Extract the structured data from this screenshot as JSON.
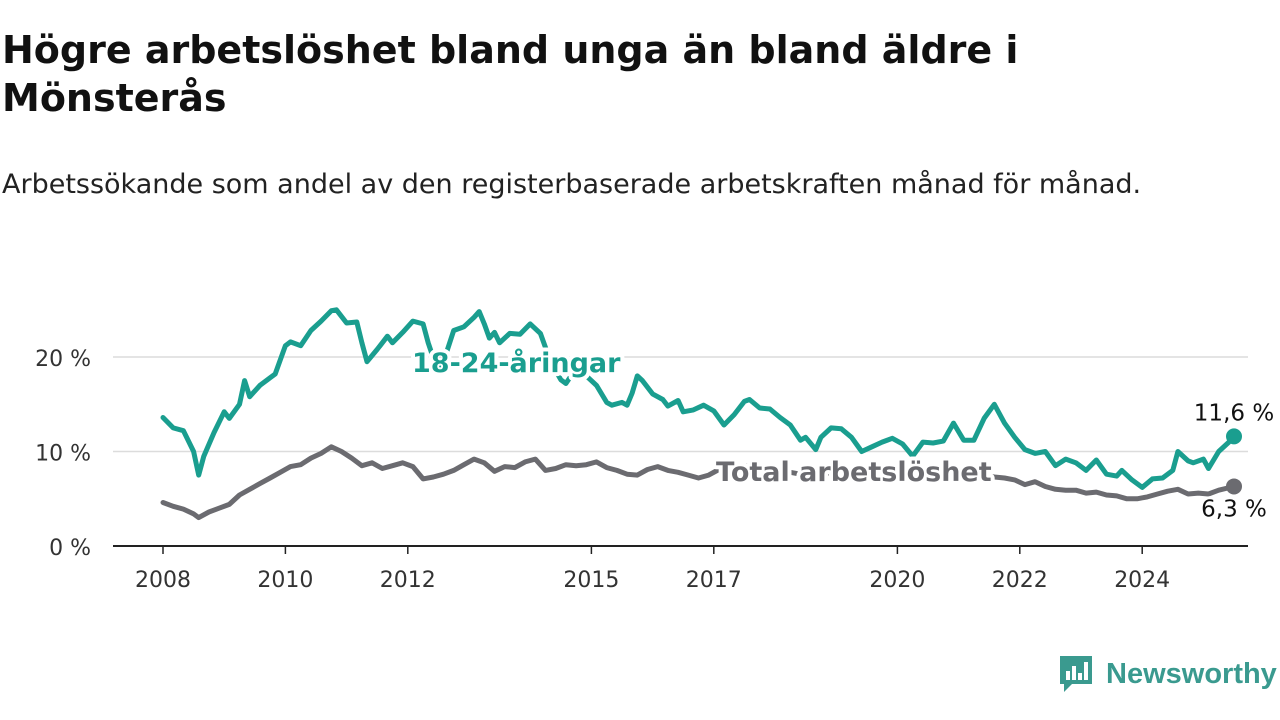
{
  "title": "Högre arbetslöshet bland unga än bland äldre i Mönsterås",
  "subtitle": "Arbetssökande som andel av den registerbaserade arbetskraften månad för månad.",
  "brand": {
    "name": "Newsworthy",
    "icon": "newsworthy-logo-icon",
    "color": "#3a9a8f"
  },
  "chart_data": {
    "type": "line",
    "xlabel": "",
    "ylabel": "",
    "x_ticks": [
      "2008",
      "2010",
      "2012",
      "2015",
      "2017",
      "2020",
      "2022",
      "2024"
    ],
    "y_ticks": [
      "0 %",
      "10 %",
      "20 %"
    ],
    "ylim": [
      0,
      25
    ],
    "xlim": [
      "2008-01",
      "2025-12"
    ],
    "grid": true,
    "legend": "inline labels",
    "series": [
      {
        "name": "18-24-åringar",
        "color": "#1a9e8f",
        "end_label": "11,6 %",
        "points": [
          [
            "2008-01",
            13.6
          ],
          [
            "2008-03",
            12.5
          ],
          [
            "2008-05",
            12.2
          ],
          [
            "2008-07",
            10.0
          ],
          [
            "2008-08",
            7.5
          ],
          [
            "2008-09",
            9.5
          ],
          [
            "2008-11",
            12.0
          ],
          [
            "2009-01",
            14.2
          ],
          [
            "2009-02",
            13.5
          ],
          [
            "2009-04",
            15.0
          ],
          [
            "2009-05",
            17.5
          ],
          [
            "2009-06",
            15.8
          ],
          [
            "2009-08",
            17.0
          ],
          [
            "2009-10",
            17.8
          ],
          [
            "2009-11",
            18.2
          ],
          [
            "2010-01",
            21.2
          ],
          [
            "2010-02",
            21.6
          ],
          [
            "2010-04",
            21.2
          ],
          [
            "2010-06",
            22.8
          ],
          [
            "2010-08",
            23.8
          ],
          [
            "2010-10",
            24.9
          ],
          [
            "2010-11",
            25.0
          ],
          [
            "2011-01",
            23.6
          ],
          [
            "2011-03",
            23.7
          ],
          [
            "2011-04",
            21.5
          ],
          [
            "2011-05",
            19.5
          ],
          [
            "2011-07",
            20.8
          ],
          [
            "2011-09",
            22.2
          ],
          [
            "2011-10",
            21.5
          ],
          [
            "2011-12",
            22.6
          ],
          [
            "2012-02",
            23.8
          ],
          [
            "2012-04",
            23.5
          ],
          [
            "2012-05",
            21.5
          ],
          [
            "2012-07",
            18.3
          ],
          [
            "2012-08",
            19.5
          ],
          [
            "2012-10",
            22.8
          ],
          [
            "2012-12",
            23.2
          ],
          [
            "2013-02",
            24.2
          ],
          [
            "2013-03",
            24.8
          ],
          [
            "2013-04",
            23.5
          ],
          [
            "2013-05",
            22.0
          ],
          [
            "2013-06",
            22.6
          ],
          [
            "2013-07",
            21.5
          ],
          [
            "2013-09",
            22.5
          ],
          [
            "2013-11",
            22.4
          ],
          [
            "2014-01",
            23.5
          ],
          [
            "2014-03",
            22.5
          ],
          [
            "2014-05",
            19.5
          ],
          [
            "2014-07",
            17.6
          ],
          [
            "2014-08",
            17.2
          ],
          [
            "2014-10",
            18.8
          ],
          [
            "2014-12",
            18.0
          ],
          [
            "2015-02",
            17.0
          ],
          [
            "2015-04",
            15.2
          ],
          [
            "2015-05",
            14.9
          ],
          [
            "2015-07",
            15.2
          ],
          [
            "2015-08",
            14.9
          ],
          [
            "2015-09",
            16.2
          ],
          [
            "2015-10",
            18.0
          ],
          [
            "2015-11",
            17.5
          ],
          [
            "2016-01",
            16.1
          ],
          [
            "2016-03",
            15.5
          ],
          [
            "2016-04",
            14.8
          ],
          [
            "2016-06",
            15.4
          ],
          [
            "2016-07",
            14.2
          ],
          [
            "2016-09",
            14.4
          ],
          [
            "2016-11",
            14.9
          ],
          [
            "2017-01",
            14.3
          ],
          [
            "2017-03",
            12.8
          ],
          [
            "2017-05",
            13.9
          ],
          [
            "2017-07",
            15.3
          ],
          [
            "2017-08",
            15.5
          ],
          [
            "2017-10",
            14.6
          ],
          [
            "2017-12",
            14.5
          ],
          [
            "2018-02",
            13.6
          ],
          [
            "2018-04",
            12.8
          ],
          [
            "2018-06",
            11.2
          ],
          [
            "2018-07",
            11.5
          ],
          [
            "2018-09",
            10.2
          ],
          [
            "2018-10",
            11.5
          ],
          [
            "2018-12",
            12.5
          ],
          [
            "2019-02",
            12.4
          ],
          [
            "2019-04",
            11.5
          ],
          [
            "2019-06",
            10.0
          ],
          [
            "2019-08",
            10.5
          ],
          [
            "2019-10",
            11.0
          ],
          [
            "2019-12",
            11.4
          ],
          [
            "2020-02",
            10.8
          ],
          [
            "2020-04",
            9.5
          ],
          [
            "2020-06",
            11.0
          ],
          [
            "2020-08",
            10.9
          ],
          [
            "2020-10",
            11.1
          ],
          [
            "2020-12",
            13.0
          ],
          [
            "2021-02",
            11.2
          ],
          [
            "2021-04",
            11.2
          ],
          [
            "2021-06",
            13.5
          ],
          [
            "2021-08",
            15.0
          ],
          [
            "2021-10",
            13.0
          ],
          [
            "2021-12",
            11.5
          ],
          [
            "2022-02",
            10.2
          ],
          [
            "2022-04",
            9.8
          ],
          [
            "2022-06",
            10.0
          ],
          [
            "2022-08",
            8.5
          ],
          [
            "2022-10",
            9.2
          ],
          [
            "2022-12",
            8.8
          ],
          [
            "2023-02",
            8.0
          ],
          [
            "2023-04",
            9.1
          ],
          [
            "2023-06",
            7.6
          ],
          [
            "2023-08",
            7.4
          ],
          [
            "2023-09",
            8.0
          ],
          [
            "2023-11",
            7.0
          ],
          [
            "2024-01",
            6.2
          ],
          [
            "2024-03",
            7.1
          ],
          [
            "2024-05",
            7.2
          ],
          [
            "2024-07",
            8.0
          ],
          [
            "2024-08",
            10.0
          ],
          [
            "2024-10",
            9.0
          ],
          [
            "2024-11",
            8.8
          ],
          [
            "2025-01",
            9.2
          ],
          [
            "2025-02",
            8.2
          ],
          [
            "2025-04",
            10.0
          ],
          [
            "2025-06",
            11.0
          ],
          [
            "2025-07",
            11.6
          ]
        ]
      },
      {
        "name": "Total arbetslöshet",
        "color": "#6b6b70",
        "end_label": "6,3 %",
        "points": [
          [
            "2008-01",
            4.6
          ],
          [
            "2008-03",
            4.2
          ],
          [
            "2008-05",
            3.9
          ],
          [
            "2008-07",
            3.4
          ],
          [
            "2008-08",
            3.0
          ],
          [
            "2008-10",
            3.6
          ],
          [
            "2008-12",
            4.0
          ],
          [
            "2009-02",
            4.4
          ],
          [
            "2009-04",
            5.4
          ],
          [
            "2009-06",
            6.0
          ],
          [
            "2009-08",
            6.6
          ],
          [
            "2009-10",
            7.2
          ],
          [
            "2009-12",
            7.8
          ],
          [
            "2010-02",
            8.4
          ],
          [
            "2010-04",
            8.6
          ],
          [
            "2010-06",
            9.3
          ],
          [
            "2010-08",
            9.8
          ],
          [
            "2010-10",
            10.5
          ],
          [
            "2010-12",
            10.0
          ],
          [
            "2011-02",
            9.3
          ],
          [
            "2011-04",
            8.5
          ],
          [
            "2011-06",
            8.8
          ],
          [
            "2011-08",
            8.2
          ],
          [
            "2011-10",
            8.5
          ],
          [
            "2011-12",
            8.8
          ],
          [
            "2012-02",
            8.4
          ],
          [
            "2012-04",
            7.1
          ],
          [
            "2012-06",
            7.3
          ],
          [
            "2012-08",
            7.6
          ],
          [
            "2012-10",
            8.0
          ],
          [
            "2012-12",
            8.6
          ],
          [
            "2013-02",
            9.2
          ],
          [
            "2013-04",
            8.8
          ],
          [
            "2013-06",
            7.9
          ],
          [
            "2013-08",
            8.4
          ],
          [
            "2013-10",
            8.3
          ],
          [
            "2013-12",
            8.9
          ],
          [
            "2014-02",
            9.2
          ],
          [
            "2014-04",
            8.0
          ],
          [
            "2014-06",
            8.2
          ],
          [
            "2014-08",
            8.6
          ],
          [
            "2014-10",
            8.5
          ],
          [
            "2014-12",
            8.6
          ],
          [
            "2015-02",
            8.9
          ],
          [
            "2015-04",
            8.3
          ],
          [
            "2015-06",
            8.0
          ],
          [
            "2015-08",
            7.6
          ],
          [
            "2015-10",
            7.5
          ],
          [
            "2015-12",
            8.1
          ],
          [
            "2016-02",
            8.4
          ],
          [
            "2016-04",
            8.0
          ],
          [
            "2016-06",
            7.8
          ],
          [
            "2016-08",
            7.5
          ],
          [
            "2016-10",
            7.2
          ],
          [
            "2016-12",
            7.5
          ],
          [
            "2017-02",
            8.1
          ],
          [
            "2017-04",
            8.6
          ],
          [
            "2017-06",
            8.4
          ],
          [
            "2017-08",
            8.5
          ],
          [
            "2017-10",
            8.3
          ],
          [
            "2017-12",
            8.5
          ],
          [
            "2018-02",
            8.0
          ],
          [
            "2018-04",
            7.8
          ],
          [
            "2018-06",
            7.6
          ],
          [
            "2018-08",
            7.8
          ],
          [
            "2018-10",
            7.5
          ],
          [
            "2018-12",
            7.8
          ],
          [
            "2019-02",
            7.7
          ],
          [
            "2019-04",
            7.6
          ],
          [
            "2019-06",
            7.3
          ],
          [
            "2019-08",
            7.6
          ],
          [
            "2019-10",
            7.4
          ],
          [
            "2019-12",
            7.7
          ],
          [
            "2020-02",
            8.0
          ],
          [
            "2020-04",
            8.4
          ],
          [
            "2020-06",
            8.3
          ],
          [
            "2020-08",
            7.9
          ],
          [
            "2020-10",
            8.0
          ],
          [
            "2020-12",
            8.2
          ],
          [
            "2021-02",
            7.9
          ],
          [
            "2021-04",
            7.8
          ],
          [
            "2021-06",
            7.5
          ],
          [
            "2021-08",
            7.3
          ],
          [
            "2021-10",
            7.2
          ],
          [
            "2021-12",
            7.0
          ],
          [
            "2022-02",
            6.5
          ],
          [
            "2022-04",
            6.8
          ],
          [
            "2022-06",
            6.3
          ],
          [
            "2022-08",
            6.0
          ],
          [
            "2022-10",
            5.9
          ],
          [
            "2022-12",
            5.9
          ],
          [
            "2023-02",
            5.6
          ],
          [
            "2023-04",
            5.7
          ],
          [
            "2023-06",
            5.4
          ],
          [
            "2023-08",
            5.3
          ],
          [
            "2023-10",
            5.0
          ],
          [
            "2023-12",
            5.0
          ],
          [
            "2024-02",
            5.2
          ],
          [
            "2024-04",
            5.5
          ],
          [
            "2024-06",
            5.8
          ],
          [
            "2024-08",
            6.0
          ],
          [
            "2024-10",
            5.5
          ],
          [
            "2024-12",
            5.6
          ],
          [
            "2025-02",
            5.5
          ],
          [
            "2025-04",
            5.9
          ],
          [
            "2025-07",
            6.3
          ]
        ]
      }
    ]
  }
}
